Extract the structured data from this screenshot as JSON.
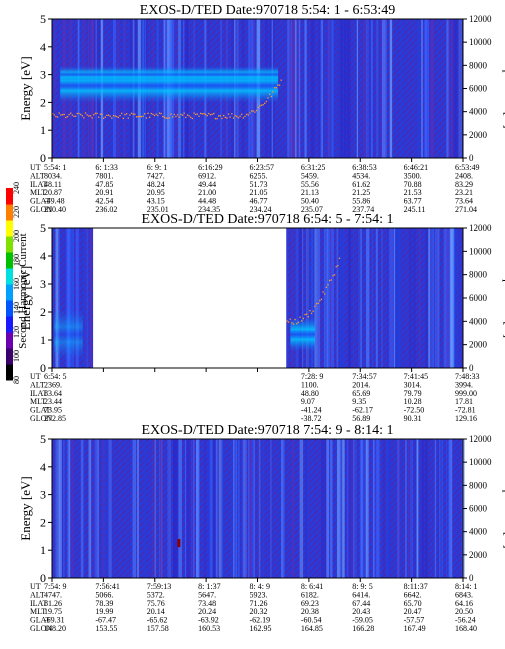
{
  "colorbar": {
    "label": "Second Harmonic Current",
    "ticks": [
      "80",
      "100",
      "120",
      "140",
      "160",
      "180",
      "200",
      "220",
      "240"
    ],
    "colors": [
      "#000000",
      "#3a006e",
      "#6a00b0",
      "#1a1aff",
      "#0055ff",
      "#00a0ff",
      "#00e0e0",
      "#00c000",
      "#80e000",
      "#ffff00",
      "#ff8000",
      "#ff0000"
    ]
  },
  "chart_data": [
    {
      "type": "heatmap",
      "title": "EXOS-D/TED   Date:970718   5:54: 1 - 6:53:49",
      "ylabel": "Energy [eV]",
      "y2label": "Temperature [K]",
      "ylim": [
        0,
        5
      ],
      "y2lim": [
        0,
        12000
      ],
      "yticks": [
        "0",
        "1",
        "2",
        "3",
        "4",
        "5"
      ],
      "y2ticks": [
        "0",
        "2000",
        "4000",
        "6000",
        "8000",
        "10000",
        "12000"
      ],
      "row_labels": [
        "UT",
        "ALT",
        "ILAT",
        "MLT",
        "GLAT",
        "GLON"
      ],
      "columns": [
        [
          "5:54: 1",
          "8034.",
          "48.11",
          "20.87",
          "-49.48",
          "210.40"
        ],
        [
          "6: 1:33",
          "7801.",
          "47.85",
          "20.91",
          "42.54",
          "236.02"
        ],
        [
          "6: 9: 1",
          "7427.",
          "48.24",
          "20.95",
          "43.15",
          "235.01"
        ],
        [
          "6:16:29",
          "6912.",
          "49.44",
          "21.00",
          "44.48",
          "234.35"
        ],
        [
          "6:23:57",
          "6255.",
          "51.73",
          "21.05",
          "46.77",
          "234.24"
        ],
        [
          "6:31:25",
          "5459.",
          "55.56",
          "21.13",
          "50.40",
          "235.07"
        ],
        [
          "6:38:53",
          "4534.",
          "61.62",
          "21.25",
          "55.86",
          "237.74"
        ],
        [
          "6:46:21",
          "3500.",
          "70.88",
          "21.53",
          "63.77",
          "245.11"
        ],
        [
          "6:53:49",
          "2408.",
          "83.29",
          "23.21",
          "73.64",
          "271.04"
        ]
      ],
      "band": {
        "center_ev": 2.6,
        "halfwidth_ev": 0.6,
        "end_fraction": 0.55
      },
      "temperature_trace": {
        "kelvin": 3700,
        "rise_to": 7000,
        "start_rise_fraction": 0.45,
        "end_fraction": 0.56
      },
      "data_gaps": []
    },
    {
      "type": "heatmap",
      "title": "EXOS-D/TED   Date:970718   6:54: 5 - 7:54: 1",
      "ylabel": "Energy [eV]",
      "y2label": "Temperature [K]",
      "ylim": [
        0,
        5
      ],
      "y2lim": [
        0,
        12000
      ],
      "yticks": [
        "0",
        "1",
        "2",
        "3",
        "4",
        "5"
      ],
      "y2ticks": [
        "0",
        "2000",
        "4000",
        "6000",
        "8000",
        "10000",
        "12000"
      ],
      "row_labels": [
        "UT",
        "ALT",
        "ILAT",
        "MLT",
        "GLAT",
        "GLON"
      ],
      "columns": [
        [
          "6:54: 5",
          "2369.",
          "83.64",
          "23.44",
          "73.95",
          "272.85"
        ],
        [
          "",
          "",
          "",
          "",
          "",
          ""
        ],
        [
          "",
          "",
          "",
          "",
          "",
          ""
        ],
        [
          "",
          "",
          "",
          "",
          "",
          ""
        ],
        [
          "",
          "",
          "",
          "",
          "",
          ""
        ],
        [
          "7:28: 9",
          "1100.",
          "48.80",
          "9.07",
          "-41.24",
          "-38.72"
        ],
        [
          "7:34:57",
          "2014.",
          "65.69",
          "9.35",
          "-62.17",
          "56.89"
        ],
        [
          "7:41:45",
          "3014.",
          "79.79",
          "10.28",
          "-72.50",
          "90.31"
        ],
        [
          "7:48:33",
          "3994.",
          "999.00",
          "17.81",
          "-72.81",
          "129.16"
        ]
      ],
      "band": {
        "center_ev": 1.2,
        "halfwidth_ev": 0.6,
        "end_fraction": 0.64
      },
      "temperature_trace": {
        "kelvin": 4000,
        "rise_to": 9500,
        "start_rise_fraction": 0.58,
        "end_fraction": 0.7
      },
      "data_gaps": [
        [
          0.1,
          0.57
        ]
      ]
    },
    {
      "type": "heatmap",
      "title": "EXOS-D/TED   Date:970718   7:54: 9 - 8:14: 1",
      "ylabel": "Energy [eV]",
      "y2label": "Temperature [K]",
      "ylim": [
        0,
        5
      ],
      "y2lim": [
        0,
        12000
      ],
      "yticks": [
        "0",
        "1",
        "2",
        "3",
        "4",
        "5"
      ],
      "y2ticks": [
        "0",
        "2000",
        "4000",
        "6000",
        "8000",
        "10000",
        "12000"
      ],
      "row_labels": [
        "UT",
        "ALT",
        "ILAT",
        "MLT",
        "GLAT",
        "GLON"
      ],
      "columns": [
        [
          "7:54: 9",
          "4747.",
          "81.26",
          "19.75",
          "-69.31",
          "148.20"
        ],
        [
          "7:56:41",
          "5066.",
          "78.39",
          "19.99",
          "-67.47",
          "153.55"
        ],
        [
          "7:59:13",
          "5372.",
          "75.76",
          "20.14",
          "-65.62",
          "157.58"
        ],
        [
          "8: 1:37",
          "5647.",
          "73.48",
          "20.24",
          "-63.92",
          "160.53"
        ],
        [
          "8: 4: 9",
          "5923.",
          "71.26",
          "20.32",
          "-62.19",
          "162.95"
        ],
        [
          "8: 6:41",
          "6182.",
          "69.23",
          "20.38",
          "-60.54",
          "164.85"
        ],
        [
          "8: 9: 5",
          "6414.",
          "67.44",
          "20.43",
          "-59.05",
          "166.28"
        ],
        [
          "8:11:37",
          "6642.",
          "65.70",
          "20.47",
          "-57.57",
          "167.49"
        ],
        [
          "8:14: 1",
          "6843.",
          "64.16",
          "20.50",
          "-56.24",
          "168.40"
        ]
      ],
      "band": null,
      "temperature_trace": null,
      "data_gaps": []
    }
  ]
}
